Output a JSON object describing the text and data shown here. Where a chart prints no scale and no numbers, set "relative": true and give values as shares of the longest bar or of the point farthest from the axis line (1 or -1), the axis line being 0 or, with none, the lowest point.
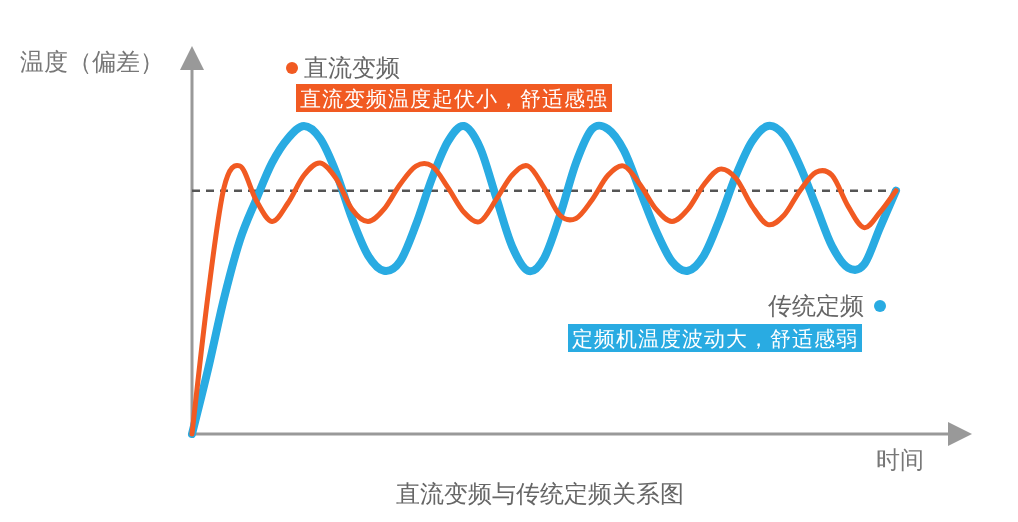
{
  "chart_data": {
    "type": "line",
    "title": "直流变频与传统定频关系图",
    "xlabel": "时间",
    "ylabel": "温度（偏差）",
    "relative": true,
    "categories": [
      null,
      null,
      null,
      null,
      null,
      null,
      null,
      null,
      null,
      null,
      null,
      null,
      null,
      null,
      null,
      null,
      null,
      null,
      null,
      null,
      null,
      null,
      null,
      null,
      null,
      null,
      null,
      null,
      null,
      null,
      null,
      null,
      null,
      null,
      null,
      null,
      null,
      null,
      null,
      null,
      null,
      null,
      null,
      null,
      null
    ],
    "series": [
      {
        "name": "直流变频",
        "color": "#f15a22",
        "values": [
          0,
          0.45,
          0.8,
          0.87,
          0.76,
          0.69,
          0.75,
          0.84,
          0.88,
          0.83,
          0.73,
          0.69,
          0.73,
          0.81,
          0.87,
          0.87,
          0.8,
          0.72,
          0.69,
          0.76,
          0.84,
          0.87,
          0.8,
          0.71,
          0.7,
          0.76,
          0.84,
          0.87,
          0.81,
          0.73,
          0.69,
          0.73,
          0.81,
          0.86,
          0.83,
          0.74,
          0.68,
          0.71,
          0.79,
          0.85,
          0.84,
          0.74,
          0.67,
          0.72,
          0.79
        ]
      },
      {
        "name": "传统定频",
        "color": "#29abe2",
        "values": [
          0,
          0.21,
          0.44,
          0.63,
          0.76,
          0.88,
          0.96,
          1.0,
          0.96,
          0.85,
          0.7,
          0.58,
          0.53,
          0.56,
          0.68,
          0.83,
          0.95,
          1.0,
          0.93,
          0.77,
          0.61,
          0.53,
          0.57,
          0.71,
          0.88,
          0.99,
          0.99,
          0.92,
          0.79,
          0.66,
          0.56,
          0.53,
          0.58,
          0.7,
          0.84,
          0.95,
          1.0,
          0.97,
          0.87,
          0.74,
          0.61,
          0.54,
          0.55,
          0.67,
          0.79
        ]
      }
    ],
    "ref_lines": [
      {
        "axis": "y",
        "value": 0.79,
        "color": "#555555",
        "line_style": "dashed"
      }
    ],
    "annotations": [
      "直流变频温度起伏小，舒适感强",
      "定频机温度波动大，舒适感弱"
    ]
  }
}
